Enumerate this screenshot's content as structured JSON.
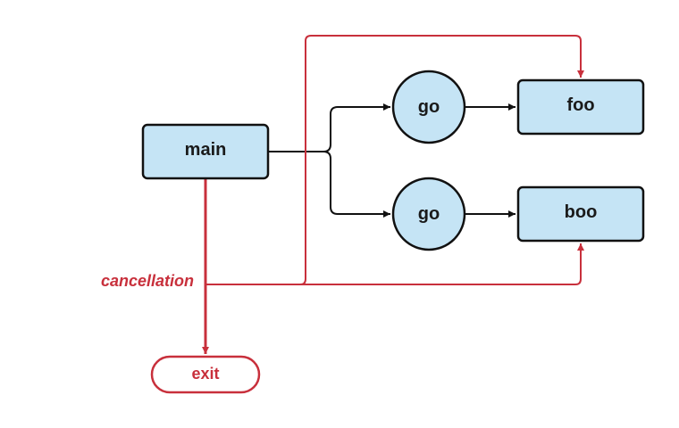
{
  "nodes": {
    "main": "main",
    "go_top": "go",
    "go_bottom": "go",
    "foo": "foo",
    "boo": "boo",
    "exit": "exit"
  },
  "labels": {
    "cancellation": "cancellation"
  },
  "colors": {
    "box_fill": "#c5e4f5",
    "stroke": "#111111",
    "accent_red": "#c8303c"
  }
}
